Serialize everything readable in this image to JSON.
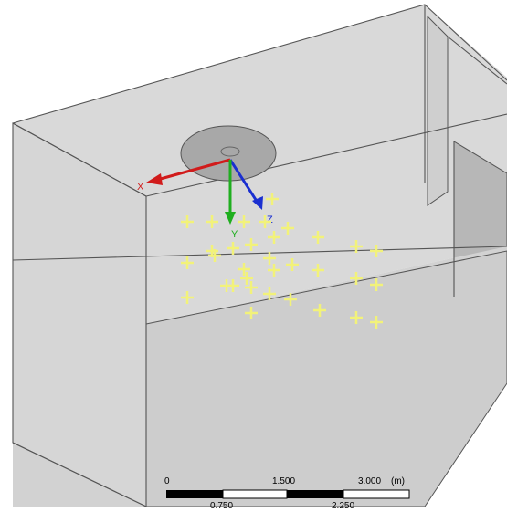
{
  "axes": {
    "x_label": "X",
    "y_label": "Y",
    "z_label": "Z",
    "x_color": "#d11b1b",
    "y_color": "#1fae1f",
    "z_color": "#1a2fd0"
  },
  "colors": {
    "room_fill": "#d4d4d4",
    "edge": "#555555",
    "sensor": "#f2f27a",
    "disk": "#a9a9a9"
  },
  "sensor_points": {
    "count": 33,
    "icon": "cross-marker-icon"
  },
  "scale_bar": {
    "label_0": "0",
    "label_1500": "1.500",
    "label_3000": "3.000",
    "unit": "(m)",
    "label_0750": "0.750",
    "label_2250": "2.250"
  }
}
